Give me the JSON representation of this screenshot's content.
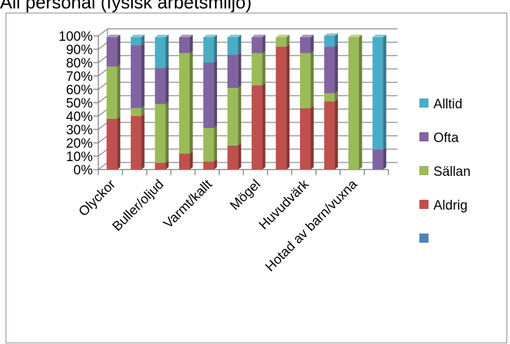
{
  "title": "All personal (fysisk arbetsmiljö)",
  "chart_data": {
    "type": "bar",
    "stacked": true,
    "three_d": true,
    "categories": [
      "Olyckor",
      "",
      "Buller/oljud",
      "",
      "Varmt/kallt",
      "",
      "Mögel",
      "",
      "Huvudvärk",
      "",
      "Hotad av barn/vuxna",
      ""
    ],
    "tick_categories": [
      "Olyckor",
      "Buller/oljud",
      "Varmt/kallt",
      "Mögel",
      "Huvudvärk",
      "Hotad av barn/vuxna"
    ],
    "series": [
      {
        "name": "Aldrig",
        "color": "#c0504d",
        "values": [
          38,
          40,
          5,
          12,
          6,
          18,
          63,
          92,
          46,
          51,
          0,
          0
        ]
      },
      {
        "name": "Sällan",
        "color": "#9bbb59",
        "values": [
          39,
          6,
          44,
          75,
          25,
          43,
          24,
          7,
          41,
          6,
          99,
          0
        ]
      },
      {
        "name": "Ofta",
        "color": "#8064a2",
        "values": [
          22,
          47,
          27,
          12,
          49,
          25,
          12,
          0,
          12,
          35,
          0,
          15
        ]
      },
      {
        "name": "Alltid",
        "color": "#4bacc6",
        "values": [
          0,
          6,
          23,
          0,
          19,
          13,
          0,
          0,
          0,
          8,
          0,
          84
        ]
      },
      {
        "name": "",
        "color": "#4f81bd",
        "values": [
          0,
          0,
          0,
          0,
          0,
          0,
          0,
          0,
          0,
          0,
          0,
          0
        ]
      }
    ],
    "legend_order": [
      "Alltid",
      "Ofta",
      "Sällan",
      "Aldrig",
      ""
    ],
    "ylim": [
      0,
      100
    ],
    "yticks": [
      "0%",
      "10%",
      "20%",
      "30%",
      "40%",
      "50%",
      "60%",
      "70%",
      "80%",
      "90%",
      "100%"
    ],
    "legend_position": "right",
    "xlabel": "",
    "ylabel": ""
  }
}
